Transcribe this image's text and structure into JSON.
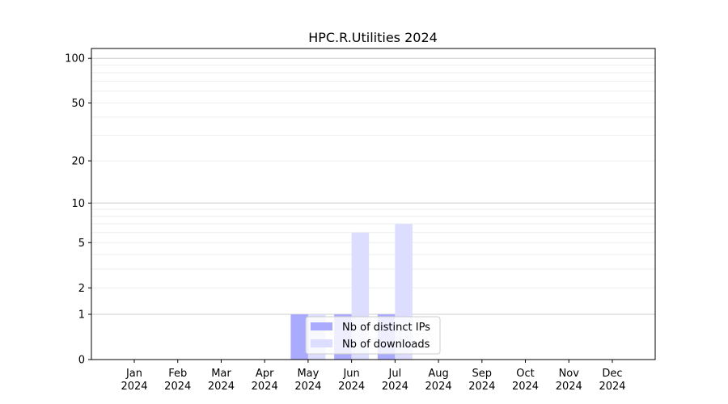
{
  "chart_data": {
    "type": "bar",
    "title": "HPC.R.Utilities 2024",
    "xlabel": "",
    "ylabel": "",
    "y_scale": "symlog (log of 1+y)",
    "ylim": [
      0,
      116
    ],
    "y_ticks": [
      0,
      1,
      2,
      5,
      10,
      20,
      50,
      100
    ],
    "grid": true,
    "legend_position": "bottom-center",
    "categories": [
      "Jan\n2024",
      "Feb\n2024",
      "Mar\n2024",
      "Apr\n2024",
      "May\n2024",
      "Jun\n2024",
      "Jul\n2024",
      "Aug\n2024",
      "Sep\n2024",
      "Oct\n2024",
      "Nov\n2024",
      "Dec\n2024"
    ],
    "series": [
      {
        "name": "Nb of distinct IPs",
        "color": "#aaaaff",
        "values": [
          0,
          0,
          0,
          0,
          1,
          1,
          1,
          0,
          0,
          0,
          0,
          0
        ]
      },
      {
        "name": "Nb of downloads",
        "color": "#ddddff",
        "values": [
          0,
          0,
          0,
          0,
          1,
          6,
          7,
          0,
          0,
          0,
          0,
          0
        ]
      }
    ]
  }
}
